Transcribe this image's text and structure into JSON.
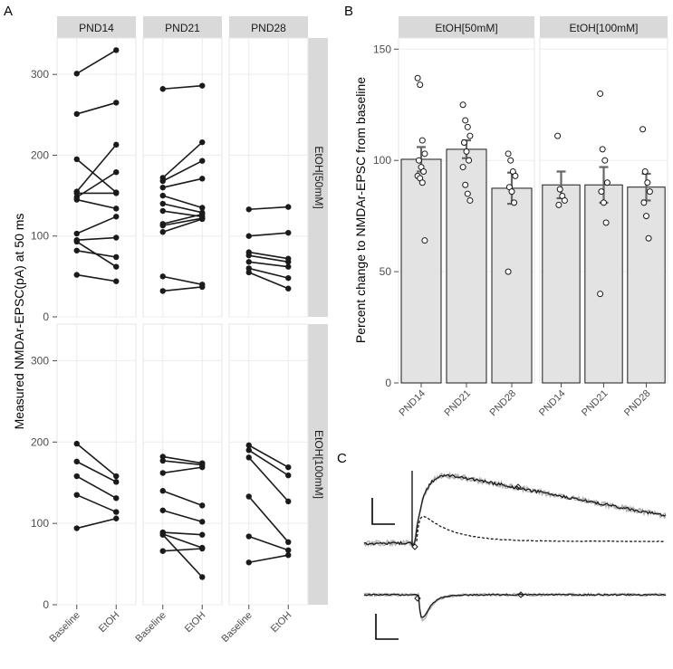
{
  "panel_letters": {
    "a": "A",
    "b": "B",
    "c": "C"
  },
  "chart_data": [
    {
      "panel": "A",
      "type": "line",
      "ylabel": "Measured NMDAr-EPSC(pA) at 50 ms",
      "xlabel": "",
      "x_ticks": [
        "Baseline",
        "EtOH"
      ],
      "y_ticks": [
        "0",
        "100",
        "200",
        "300"
      ],
      "ylim": [
        0,
        345
      ],
      "column_strips": [
        "PND14",
        "PND21",
        "PND28"
      ],
      "row_strips": [
        "EtOH[50mM]",
        "EtOH[100mM]"
      ],
      "grid": true,
      "facets": [
        {
          "col": 0,
          "row": 0,
          "pairs": [
            [
              301,
              330
            ],
            [
              251,
              265
            ],
            [
              195,
              154
            ],
            [
              155,
              213
            ],
            [
              153,
              153
            ],
            [
              148,
              179
            ],
            [
              145,
              134
            ],
            [
              103,
              124
            ],
            [
              95,
              98
            ],
            [
              93,
              62
            ],
            [
              82,
              74
            ],
            [
              52,
              44
            ]
          ]
        },
        {
          "col": 1,
          "row": 0,
          "pairs": [
            [
              282,
              286
            ],
            [
              172,
              216
            ],
            [
              168,
              193
            ],
            [
              160,
              171
            ],
            [
              150,
              135
            ],
            [
              140,
              129
            ],
            [
              131,
              124
            ],
            [
              115,
              127
            ],
            [
              113,
              122
            ],
            [
              105,
              121
            ],
            [
              50,
              40
            ],
            [
              32,
              37
            ]
          ]
        },
        {
          "col": 2,
          "row": 0,
          "pairs": [
            [
              133,
              136
            ],
            [
              100,
              104
            ],
            [
              80,
              72
            ],
            [
              76,
              68
            ],
            [
              68,
              62
            ],
            [
              60,
              48
            ],
            [
              55,
              35
            ]
          ]
        },
        {
          "col": 0,
          "row": 1,
          "pairs": [
            [
              198,
              158
            ],
            [
              176,
              151
            ],
            [
              158,
              131
            ],
            [
              135,
              114
            ],
            [
              94,
              106
            ]
          ]
        },
        {
          "col": 1,
          "row": 1,
          "pairs": [
            [
              182,
              174
            ],
            [
              177,
              172
            ],
            [
              162,
              169
            ],
            [
              140,
              122
            ],
            [
              116,
              102
            ],
            [
              89,
              86
            ],
            [
              87,
              70
            ],
            [
              66,
              69
            ],
            [
              86,
              34
            ]
          ]
        },
        {
          "col": 2,
          "row": 1,
          "pairs": [
            [
              196,
              169
            ],
            [
              190,
              159
            ],
            [
              181,
              127
            ],
            [
              133,
              77
            ],
            [
              84,
              67
            ],
            [
              52,
              61
            ]
          ]
        }
      ]
    },
    {
      "panel": "B",
      "type": "bar",
      "ylabel": "Percent change to NMDAr-EPSC from baseline",
      "xlabel": "",
      "ylim": [
        0,
        155
      ],
      "y_ticks": [
        "0",
        "50",
        "100",
        "150"
      ],
      "strips": [
        "EtOH[50mM]",
        "EtOH[100mM]"
      ],
      "categories": [
        "PND14",
        "PND21",
        "PND28"
      ],
      "grid": true,
      "facets": [
        {
          "strip": "EtOH[50mM]",
          "means": [
            100.5,
            105,
            87.5
          ],
          "errors": [
            5.5,
            4,
            7
          ],
          "points": [
            [
              137,
              134,
              109,
              103,
              100,
              97,
              95,
              93,
              92,
              90,
              64
            ],
            [
              125,
              118,
              115,
              111,
              108,
              104,
              100,
              97,
              89,
              85,
              82
            ],
            [
              103,
              100,
              95,
              93,
              88,
              86,
              81,
              50
            ]
          ]
        },
        {
          "strip": "EtOH[100mM]",
          "means": [
            89,
            89,
            88
          ],
          "errors": [
            6,
            8,
            6
          ],
          "points": [
            [
              111,
              87,
              84,
              82,
              80
            ],
            [
              130,
              105,
              100,
              90,
              86,
              81,
              72,
              40
            ],
            [
              114,
              95,
              90,
              86,
              81,
              75,
              65
            ]
          ]
        }
      ]
    }
  ]
}
